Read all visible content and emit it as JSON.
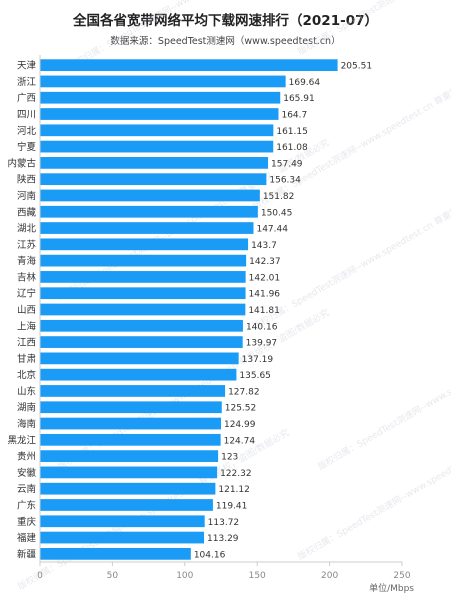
{
  "title": "全国各省宽带网络平均下载网速排行（2021-07）",
  "subtitle": "数据来源：SpeedTest测速网（www.speedtest.cn）",
  "watermark": "版权归属：SpeedTest测速网--www.speedtest.cn 尊重版权，盗图/数据必究",
  "colors": {
    "bar": "#1a9bf5",
    "axis": "#cccccc",
    "grid": "#eeeeee"
  },
  "chart_data": {
    "type": "bar",
    "orientation": "horizontal",
    "title": "全国各省宽带网络平均下载网速排行（2021-07）",
    "subtitle": "数据来源：SpeedTest测速网（www.speedtest.cn）",
    "xlabel": "单位/Mbps",
    "ylabel": "",
    "xlim": [
      0,
      250
    ],
    "xticks": [
      0,
      50,
      100,
      150,
      200,
      250
    ],
    "grid": false,
    "categories": [
      "天津",
      "浙江",
      "广西",
      "四川",
      "河北",
      "宁夏",
      "内蒙古",
      "陕西",
      "河南",
      "西藏",
      "湖北",
      "江苏",
      "青海",
      "吉林",
      "辽宁",
      "山西",
      "上海",
      "江西",
      "甘肃",
      "北京",
      "山东",
      "湖南",
      "海南",
      "黑龙江",
      "贵州",
      "安徽",
      "云南",
      "广东",
      "重庆",
      "福建",
      "新疆"
    ],
    "values": [
      205.51,
      169.64,
      165.91,
      164.7,
      161.15,
      161.08,
      157.49,
      156.34,
      151.82,
      150.45,
      147.44,
      143.7,
      142.37,
      142.01,
      141.96,
      141.81,
      140.16,
      139.97,
      137.19,
      135.65,
      127.82,
      125.52,
      124.99,
      124.74,
      123,
      122.32,
      121.12,
      119.41,
      113.72,
      113.29,
      104.16
    ]
  }
}
